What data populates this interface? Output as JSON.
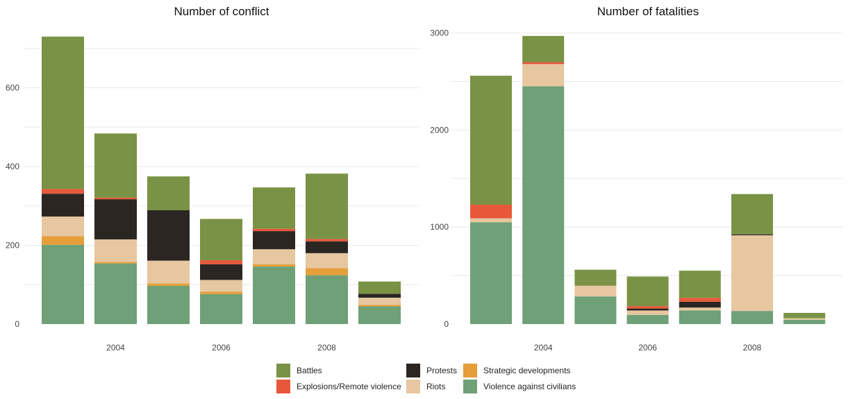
{
  "colors": {
    "Battles": "#7a9245",
    "Explosions/Remote violence": "#e8573a",
    "Protests": "#2b2622",
    "Riots": "#e6c7a0",
    "Strategic developments": "#e49e3a",
    "Violence against civilians": "#6fa077"
  },
  "legend": [
    {
      "name": "Battles",
      "color": "#7a9245"
    },
    {
      "name": "Explosions/Remote violence",
      "color": "#e8573a"
    },
    {
      "name": "Protests",
      "color": "#2b2622"
    },
    {
      "name": "Riots",
      "color": "#e6c7a0"
    },
    {
      "name": "Strategic developments",
      "color": "#e49e3a"
    },
    {
      "name": "Violence against civilians",
      "color": "#6fa077"
    }
  ],
  "chart_data": [
    {
      "type": "bar",
      "stacked": true,
      "title": "Number of conflict",
      "xlabel": "",
      "ylabel": "",
      "x": [
        2003,
        2004,
        2005,
        2006,
        2007,
        2008,
        2009
      ],
      "x_tick_labels": [
        "2004",
        "2006",
        "2008"
      ],
      "x_tick_values": [
        2004,
        2006,
        2008
      ],
      "y_tick_labels": [
        "0",
        "200",
        "400",
        "600"
      ],
      "y_tick_values": [
        0,
        200,
        400,
        600
      ],
      "ylim": [
        0,
        760
      ],
      "grid": true,
      "legend_position": "bottom",
      "series": [
        {
          "name": "Violence against civilians",
          "values": [
            201,
            154,
            97,
            76,
            146,
            124,
            45
          ]
        },
        {
          "name": "Strategic developments",
          "values": [
            22,
            4,
            6,
            6,
            6,
            18,
            4
          ]
        },
        {
          "name": "Riots",
          "values": [
            50,
            57,
            58,
            30,
            38,
            38,
            18
          ]
        },
        {
          "name": "Protests",
          "values": [
            58,
            102,
            128,
            40,
            46,
            30,
            10
          ]
        },
        {
          "name": "Explosions/Remote violence",
          "values": [
            12,
            4,
            0,
            10,
            6,
            6,
            0
          ]
        },
        {
          "name": "Battles",
          "values": [
            387,
            163,
            86,
            105,
            105,
            166,
            31
          ]
        }
      ]
    },
    {
      "type": "bar",
      "stacked": true,
      "title": "Number of fatalities",
      "xlabel": "",
      "ylabel": "",
      "x": [
        2003,
        2004,
        2005,
        2006,
        2007,
        2008,
        2009
      ],
      "x_tick_labels": [
        "2004",
        "2006",
        "2008"
      ],
      "x_tick_values": [
        2004,
        2006,
        2008
      ],
      "y_tick_labels": [
        "0",
        "1000",
        "2000",
        "3000"
      ],
      "y_tick_values": [
        0,
        1000,
        2000,
        3000
      ],
      "ylim": [
        0,
        3050
      ],
      "grid": true,
      "legend_position": "bottom",
      "series": [
        {
          "name": "Violence against civilians",
          "values": [
            1050,
            2450,
            285,
            95,
            140,
            135,
            45
          ]
        },
        {
          "name": "Strategic developments",
          "values": [
            0,
            0,
            0,
            0,
            0,
            0,
            0
          ]
        },
        {
          "name": "Riots",
          "values": [
            40,
            230,
            110,
            45,
            30,
            780,
            15
          ]
        },
        {
          "name": "Protests",
          "values": [
            0,
            0,
            0,
            20,
            60,
            10,
            0
          ]
        },
        {
          "name": "Explosions/Remote violence",
          "values": [
            140,
            20,
            0,
            25,
            40,
            0,
            0
          ]
        },
        {
          "name": "Battles",
          "values": [
            1330,
            270,
            165,
            305,
            280,
            415,
            55
          ]
        }
      ]
    }
  ]
}
